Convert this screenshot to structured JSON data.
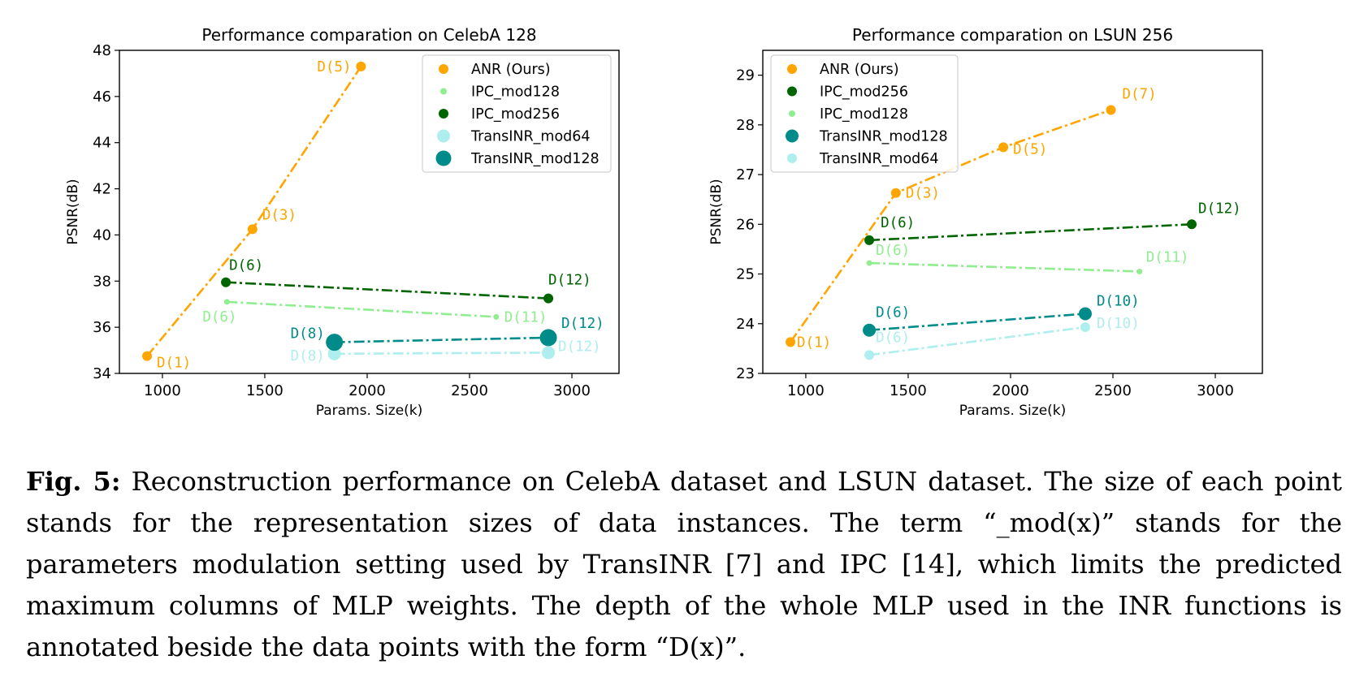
{
  "caption": {
    "label": "Fig. 5:",
    "text": "Reconstruction performance on CelebA dataset and LSUN dataset. The size of each point stands for the representation sizes of data instances. The term “_mod(x)” stands for the parameters modulation setting used by TransINR [7] and IPC [14], which limits the predicted maximum columns of MLP weights. The depth of the whole MLP used in the INR functions is annotated beside the data points with the form “D(x)”."
  },
  "chart_data": [
    {
      "type": "scatter",
      "title": "Performance comparation on CelebA 128",
      "xlabel": "Params. Size(k)",
      "ylabel": "PSNR(dB)",
      "xlim": [
        790,
        3230
      ],
      "ylim": [
        34,
        48
      ],
      "xticks": [
        1000,
        1500,
        2000,
        2500,
        3000
      ],
      "yticks": [
        34,
        36,
        38,
        40,
        42,
        44,
        46,
        48
      ],
      "legend_position": "top-right",
      "series": [
        {
          "name": "ANR (Ours)",
          "color": "#FFA500",
          "line": "dashdot",
          "size": "medium",
          "points": [
            {
              "x": 925,
              "y": 34.75,
              "label": "D(1)"
            },
            {
              "x": 1440,
              "y": 40.25,
              "label": "D(3)"
            },
            {
              "x": 1970,
              "y": 47.3,
              "label": "D(5)"
            }
          ]
        },
        {
          "name": "IPC_mod128",
          "color": "#90EE90",
          "line": "dashdot",
          "size": "small",
          "points": [
            {
              "x": 1315,
              "y": 37.1,
              "label": "D(6)"
            },
            {
              "x": 2630,
              "y": 36.45,
              "label": "D(11)"
            }
          ]
        },
        {
          "name": "IPC_mod256",
          "color": "#006400",
          "line": "dashdot",
          "size": "medium",
          "points": [
            {
              "x": 1310,
              "y": 37.95,
              "label": "D(6)"
            },
            {
              "x": 2885,
              "y": 37.25,
              "label": "D(12)"
            }
          ]
        },
        {
          "name": "TransINR_mod64",
          "color": "#AFEEEE",
          "line": "dashdot",
          "size": "large",
          "points": [
            {
              "x": 1840,
              "y": 34.85,
              "label": "D(8)"
            },
            {
              "x": 2885,
              "y": 34.9,
              "label": "D(12)"
            }
          ]
        },
        {
          "name": "TransINR_mod128",
          "color": "#008B8B",
          "line": "dashdot",
          "size": "xlarge",
          "points": [
            {
              "x": 1840,
              "y": 35.35,
              "label": "D(8)"
            },
            {
              "x": 2885,
              "y": 35.55,
              "label": "D(12)"
            }
          ]
        }
      ]
    },
    {
      "type": "scatter",
      "title": "Performance comparation on LSUN 256",
      "xlabel": "Params. Size(k)",
      "ylabel": "PSNR(dB)",
      "xlim": [
        790,
        3230
      ],
      "ylim": [
        23,
        29.5
      ],
      "xticks": [
        1000,
        1500,
        2000,
        2500,
        3000
      ],
      "yticks": [
        23,
        24,
        25,
        26,
        27,
        28,
        29
      ],
      "legend_position": "top-left",
      "series": [
        {
          "name": "ANR (Ours)",
          "color": "#FFA500",
          "line": "dashdot",
          "size": "medium",
          "points": [
            {
              "x": 925,
              "y": 23.63,
              "label": "D(1)"
            },
            {
              "x": 1440,
              "y": 26.63,
              "label": "D(3)"
            },
            {
              "x": 1965,
              "y": 27.55,
              "label": "D(5)"
            },
            {
              "x": 2490,
              "y": 28.3,
              "label": "D(7)"
            }
          ]
        },
        {
          "name": "IPC_mod256",
          "color": "#006400",
          "line": "dashdot",
          "size": "medium",
          "points": [
            {
              "x": 1310,
              "y": 25.68,
              "label": "D(6)"
            },
            {
              "x": 2885,
              "y": 26.0,
              "label": "D(12)"
            }
          ]
        },
        {
          "name": "IPC_mod128",
          "color": "#90EE90",
          "line": "dashdot",
          "size": "small",
          "points": [
            {
              "x": 1310,
              "y": 25.22,
              "label": "D(6)"
            },
            {
              "x": 2630,
              "y": 25.05,
              "label": "D(11)"
            }
          ]
        },
        {
          "name": "TransINR_mod128",
          "color": "#008B8B",
          "line": "dashdot",
          "size": "large",
          "points": [
            {
              "x": 1310,
              "y": 23.87,
              "label": "D(6)"
            },
            {
              "x": 2365,
              "y": 24.2,
              "label": "D(10)"
            }
          ]
        },
        {
          "name": "TransINR_mod64",
          "color": "#AFEEEE",
          "line": "dashdot",
          "size": "medium",
          "points": [
            {
              "x": 1310,
              "y": 23.37,
              "label": "D(6)"
            },
            {
              "x": 2365,
              "y": 23.93,
              "label": "D(10)"
            }
          ]
        }
      ]
    }
  ]
}
